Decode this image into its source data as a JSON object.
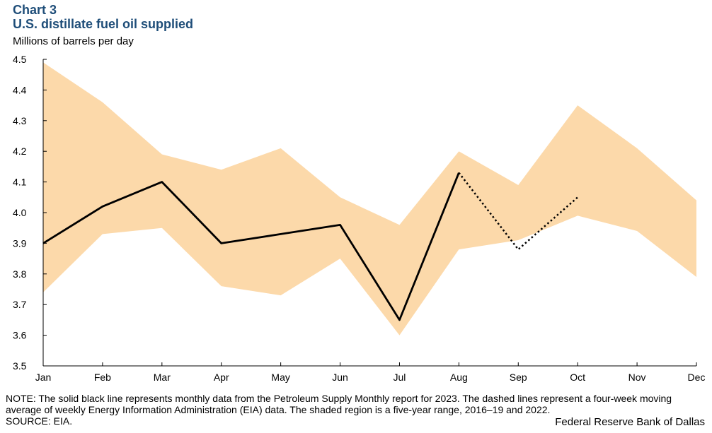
{
  "header": {
    "chart_number": "Chart 3",
    "title": "U.S. distillate fuel oil supplied",
    "unit": "Millions of barrels per day"
  },
  "footer": {
    "note": "NOTE: The solid black line represents monthly data from the Petroleum Supply Monthly report for 2023. The dashed lines represent a four-week moving average of weekly Energy Information Administration (EIA) data. The shaded region is a five-year range, 2016–19 and 2022.",
    "source": "SOURCE: EIA.",
    "credit": "Federal Reserve Bank of Dallas"
  },
  "colors": {
    "band": "#fcd9aa",
    "line": "#000000",
    "title": "#1f4e79"
  },
  "chart_data": {
    "type": "line",
    "categories": [
      "Jan",
      "Feb",
      "Mar",
      "Apr",
      "May",
      "Jun",
      "Jul",
      "Aug",
      "Sep",
      "Oct",
      "Nov",
      "Dec"
    ],
    "ylim": [
      3.5,
      4.5
    ],
    "yticks": [
      "3.5",
      "3.6",
      "3.7",
      "3.8",
      "3.9",
      "4.0",
      "4.1",
      "4.2",
      "4.3",
      "4.4",
      "4.5"
    ],
    "ylabel": "Millions of barrels per day",
    "grid": false,
    "range_band": {
      "upper": [
        4.49,
        4.36,
        4.19,
        4.14,
        4.21,
        4.05,
        3.96,
        4.2,
        4.09,
        4.35,
        4.21,
        4.04
      ],
      "lower": [
        3.74,
        3.93,
        3.95,
        3.76,
        3.73,
        3.85,
        3.6,
        3.88,
        3.91,
        3.99,
        3.94,
        3.79
      ]
    },
    "series": [
      {
        "style": "solid",
        "values": [
          3.9,
          4.02,
          4.1,
          3.9,
          3.93,
          3.96,
          3.65,
          4.13,
          null,
          null,
          null,
          null
        ]
      },
      {
        "style": "dotted",
        "values": [
          null,
          null,
          null,
          null,
          null,
          null,
          null,
          4.13,
          3.88,
          4.05,
          null,
          null
        ]
      }
    ]
  }
}
